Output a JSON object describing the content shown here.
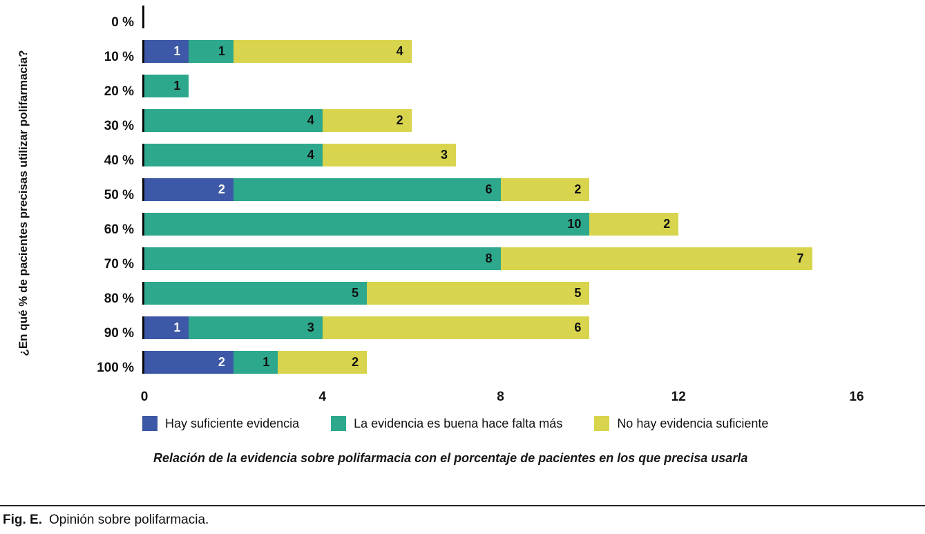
{
  "figure": {
    "label": "Fig. E.",
    "text": "Opinión sobre polifarmacia."
  },
  "chart_data": {
    "type": "bar",
    "orientation": "horizontal",
    "stacked": true,
    "grid": false,
    "legend_position": "bottom",
    "y_axis_title": "¿En qué % de pacientes precisas utilizar polifarmacia?",
    "caption": "Relación de la evidencia sobre polifarmacia con el porcentaje de pacientes en los que precisa usarla",
    "categories": [
      "0 %",
      "10 %",
      "20 %",
      "30 %",
      "40 %",
      "50 %",
      "60 %",
      "70 %",
      "80 %",
      "90 %",
      "100 %"
    ],
    "xlim": [
      0,
      16
    ],
    "x_ticks": [
      0,
      4,
      8,
      12,
      16
    ],
    "series": [
      {
        "name": "Hay suficiente evidencia",
        "color": "#3c58a6",
        "label_color": "#ffffff",
        "values": [
          0,
          1,
          0,
          0,
          0,
          2,
          0,
          0,
          0,
          1,
          2
        ]
      },
      {
        "name": "La evidencia es buena hace falta más",
        "color": "#2da88c",
        "label_color": "#101010",
        "values": [
          0,
          1,
          1,
          4,
          4,
          6,
          10,
          8,
          5,
          3,
          1
        ]
      },
      {
        "name": "No hay evidencia suficiente",
        "color": "#d8d44d",
        "label_color": "#101010",
        "values": [
          0,
          4,
          0,
          2,
          3,
          2,
          2,
          7,
          5,
          6,
          2
        ]
      }
    ]
  }
}
